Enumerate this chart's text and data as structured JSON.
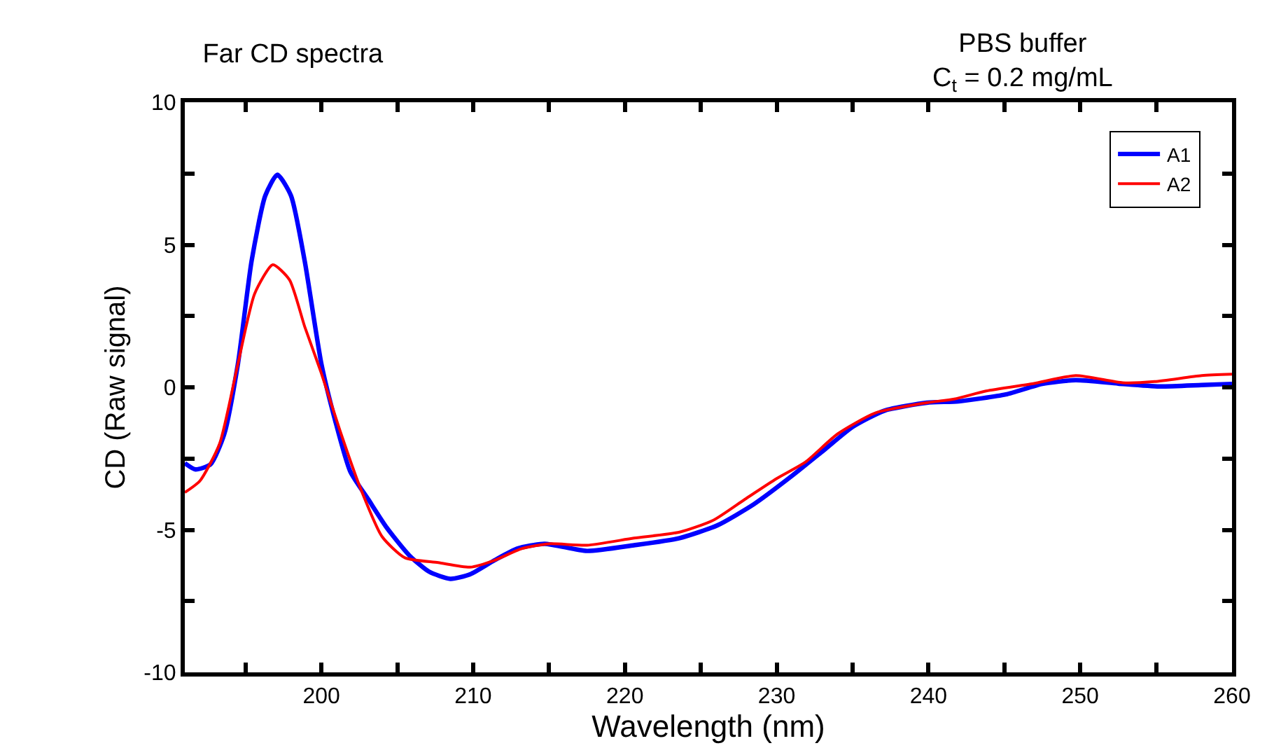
{
  "chart_data": {
    "type": "line",
    "title": "Far CD spectra",
    "xlabel": "Wavelength (nm)",
    "ylabel": "CD (Raw signal)",
    "annotations": [
      "PBS buffer\nC$_{t}$ = 0.2 mg/mL"
    ],
    "xlim": [
      191,
      260
    ],
    "ylim": [
      -10,
      10
    ],
    "xticks": [
      {
        "value": 195,
        "label": null
      },
      200,
      {
        "value": 205,
        "label": null
      },
      210,
      {
        "value": 215,
        "label": null
      },
      220,
      {
        "value": 225,
        "label": null
      },
      230,
      {
        "value": 235,
        "label": null
      },
      240,
      {
        "value": 245,
        "label": null
      },
      250,
      {
        "value": 255,
        "label": null
      },
      260
    ],
    "yticks": [
      -10,
      {
        "value": -7.5,
        "label": null
      },
      -5,
      {
        "value": -2.5,
        "label": null
      },
      0,
      {
        "value": 2.5,
        "label": null
      },
      5,
      {
        "value": 7.5,
        "label": null
      },
      10
    ],
    "legend": "top right",
    "marker": "none",
    "line_style": "solid",
    "series": [
      {
        "name": "A1",
        "color": "#0000ff",
        "x": [
          191.0,
          191.7,
          192.7,
          193.6,
          194.5,
          195.4,
          196.3,
          197.1,
          198.0,
          198.9,
          200.0,
          200.9,
          201.9,
          203.1,
          204.3,
          205.8,
          207.1,
          208.5,
          209.8,
          211.4,
          212.9,
          214.7,
          217.5,
          220.6,
          223.6,
          226.1,
          228.5,
          231.0,
          233.1,
          235.0,
          237.1,
          239.9,
          242.0,
          245.1,
          247.5,
          249.7,
          252.5,
          255.2,
          258.0,
          260.0
        ],
        "values": [
          -2.66,
          -2.88,
          -2.7,
          -1.64,
          0.82,
          4.43,
          6.72,
          7.46,
          6.72,
          4.43,
          0.82,
          -1.15,
          -2.95,
          -3.94,
          -4.92,
          -5.9,
          -6.47,
          -6.72,
          -6.56,
          -6.07,
          -5.66,
          -5.49,
          -5.74,
          -5.54,
          -5.29,
          -4.84,
          -4.1,
          -3.11,
          -2.21,
          -1.39,
          -0.82,
          -0.54,
          -0.49,
          -0.25,
          0.12,
          0.25,
          0.13,
          0.03,
          0.08,
          0.12
        ]
      },
      {
        "name": "A2",
        "color": "#ff0000",
        "x": [
          191.0,
          192.0,
          193.3,
          194.5,
          195.6,
          196.8,
          197.9,
          198.9,
          200.0,
          201.2,
          202.5,
          204.0,
          205.5,
          207.7,
          209.8,
          211.4,
          213.2,
          215.0,
          217.5,
          220.6,
          223.6,
          225.8,
          227.9,
          230.0,
          231.9,
          234.0,
          236.5,
          239.9,
          241.7,
          243.8,
          246.9,
          249.7,
          252.8,
          254.9,
          258.0,
          260.0
        ],
        "values": [
          -3.69,
          -3.28,
          -1.97,
          0.82,
          3.28,
          4.3,
          3.77,
          2.13,
          0.49,
          -1.48,
          -3.44,
          -5.24,
          -5.98,
          -6.15,
          -6.31,
          -6.07,
          -5.66,
          -5.49,
          -5.54,
          -5.29,
          -5.08,
          -4.67,
          -3.93,
          -3.2,
          -2.62,
          -1.64,
          -0.9,
          -0.54,
          -0.41,
          -0.13,
          0.13,
          0.41,
          0.16,
          0.2,
          0.41,
          0.46
        ]
      }
    ]
  }
}
